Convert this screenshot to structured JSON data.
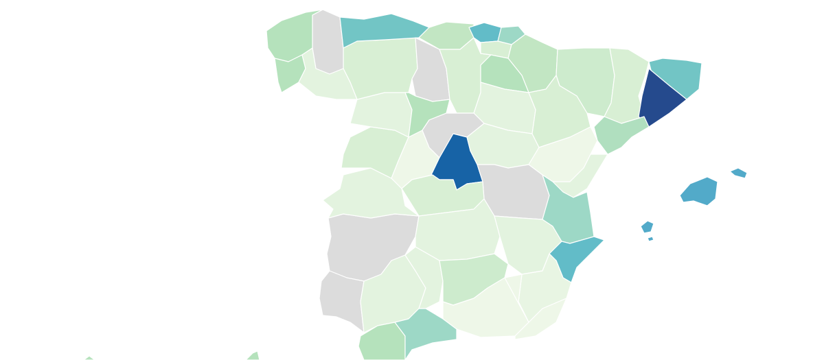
{
  "map": {
    "type": "choropleth",
    "background": "#ffffff",
    "no_data_color": "#dcdcdc",
    "region_fills": {
      "a-coruna": "#b5e2bc",
      "lugo": "#dcdcdc",
      "pontevedra": "#b5e2bc",
      "ourense": "#e3f3df",
      "asturias": "#72c5c5",
      "cantabria": "#c2e6c3",
      "bizkaia": "#62bcc8",
      "gipuzkoa": "#9dd8c6",
      "alava": "#d8efd4",
      "navarra": "#c2e6c3",
      "la-rioja": "#b5e2bc",
      "leon": "#d8efd4",
      "palencia": "#dcdcdc",
      "burgos": "#d8efd4",
      "zamora": "#e3f3df",
      "valladolid": "#b5e2bc",
      "soria": "#e3f3df",
      "segovia": "#dcdcdc",
      "salamanca": "#d8efd4",
      "avila": "#eef7e8",
      "madrid": "#1763a6",
      "guadalajara": "#e3f3df",
      "cuenca": "#dcdcdc",
      "toledo": "#d8efd4",
      "caceres": "#e3f3df",
      "badajoz": "#dcdcdc",
      "huesca": "#cdebcd",
      "zaragoza": "#d8efd4",
      "teruel": "#eef7e8",
      "lleida": "#d8efd4",
      "girona": "#72c5c5",
      "barcelona": "#254a8d",
      "tarragona": "#b0dfbf",
      "castellon": "#e3f3df",
      "valencia": "#9dd8c6",
      "alicante": "#62bcc8",
      "murcia": "#e8f5e3",
      "albacete": "#e3f3df",
      "ciudad-real": "#e3f3df",
      "huelva": "#dcdcdc",
      "sevilla": "#e3f3df",
      "cordoba": "#e3f3df",
      "jaen": "#cdebcd",
      "granada": "#eef7e8",
      "almeria": "#eef7e8",
      "cadiz": "#b5e2bc",
      "malaga": "#9dd8c6",
      "mallorca": "#52aac9",
      "menorca": "#52aac9",
      "ibiza": "#52aac9",
      "formentera": "#52aac9",
      "canary-west": "#b5e2bc",
      "canary-east": "#b5e2bc"
    }
  }
}
